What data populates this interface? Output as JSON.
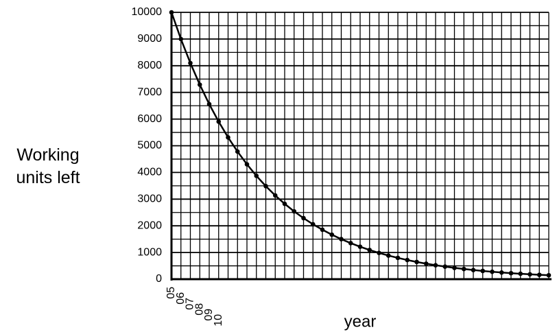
{
  "chart_data": {
    "type": "line",
    "xlabel": "year",
    "ylabel": "Working units left",
    "categories": [
      "05",
      "06",
      "07",
      "08",
      "09",
      "10",
      null,
      null,
      null,
      null,
      null,
      null,
      null,
      null,
      null,
      null,
      null,
      null,
      null,
      null,
      null,
      null,
      null,
      null,
      null,
      null,
      null,
      null,
      null,
      null,
      null,
      null,
      null,
      null,
      null,
      null,
      null,
      null,
      null,
      null,
      null
    ],
    "values": [
      10000,
      9000,
      8100,
      7290,
      6561,
      5905,
      5314,
      4783,
      4305,
      3874,
      3487,
      3138,
      2824,
      2542,
      2288,
      2059,
      1853,
      1668,
      1501,
      1351,
      1216,
      1094,
      985,
      886,
      798,
      718,
      646,
      581,
      523,
      471,
      424,
      382,
      343,
      309,
      278,
      250,
      225,
      203,
      182,
      164,
      148
    ],
    "color": "#000000",
    "ylim": [
      0,
      10000
    ],
    "yticks": [
      0,
      1000,
      2000,
      3000,
      4000,
      5000,
      6000,
      7000,
      8000,
      9000,
      10000
    ],
    "yminorticks": [
      500,
      1500,
      2500,
      3500,
      4500,
      5500,
      6500,
      7500,
      8500,
      9500
    ],
    "grid": true
  }
}
